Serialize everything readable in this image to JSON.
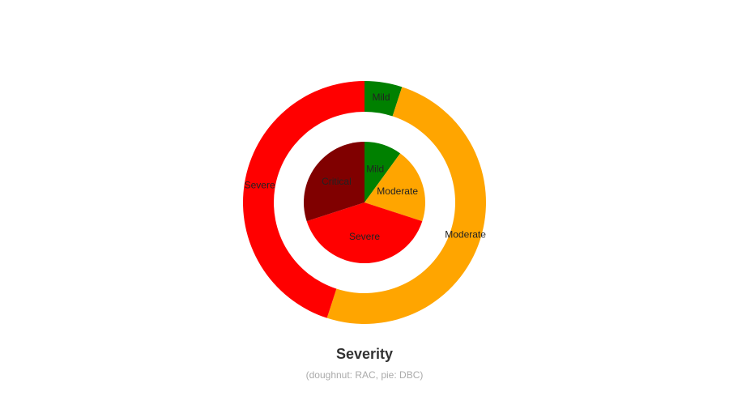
{
  "chart_data": {
    "type": "pie",
    "title": "Severity",
    "subtitle": "(doughnut: RAC, pie: DBC)",
    "outer_ring": {
      "kind": "doughnut",
      "slices": [
        {
          "label": "Mild",
          "value": 5,
          "color": "#008000"
        },
        {
          "label": "Moderate",
          "value": 50,
          "color": "#FFA500"
        },
        {
          "label": "Severe",
          "value": 45,
          "color": "#FF0000"
        }
      ]
    },
    "inner_pie": {
      "kind": "pie",
      "slices": [
        {
          "label": "Mild",
          "value": 10,
          "color": "#008000"
        },
        {
          "label": "Moderate",
          "value": 20,
          "color": "#FFA500"
        },
        {
          "label": "Severe",
          "value": 40,
          "color": "#FF0000"
        },
        {
          "label": "Critical",
          "value": 30,
          "color": "#800000"
        }
      ]
    },
    "legend": "none",
    "start_angle": "top, clockwise"
  }
}
